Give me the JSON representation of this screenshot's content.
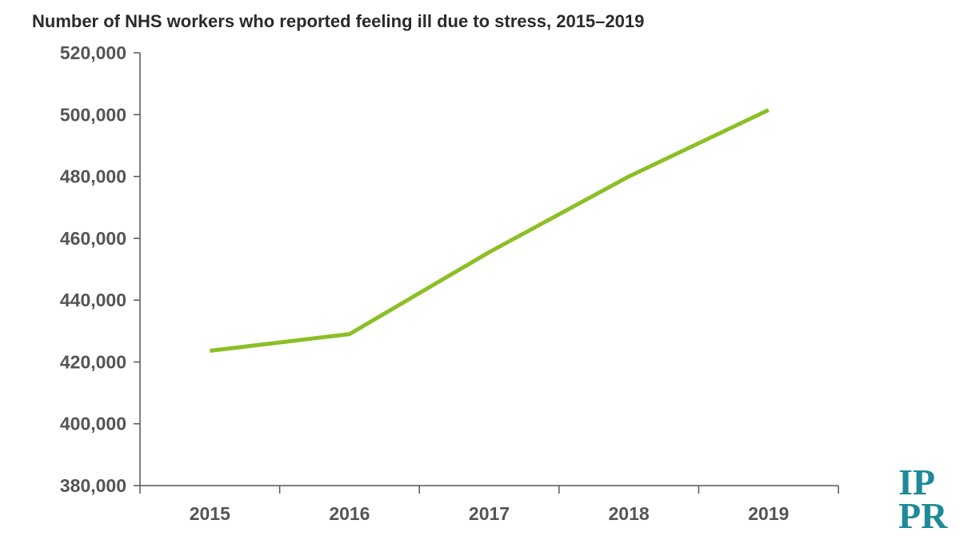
{
  "title": "Number of NHS workers who reported feeling ill due to stress, 2015–2019",
  "colors": {
    "line": "#8cbf26",
    "axis": "#555555",
    "logo": "#1d8a99"
  },
  "logo_text": "IPPR",
  "chart_data": {
    "type": "line",
    "title": "Number of NHS workers who reported feeling ill due to stress, 2015–2019",
    "xlabel": "",
    "ylabel": "",
    "categories": [
      "2015",
      "2016",
      "2017",
      "2018",
      "2019"
    ],
    "values": [
      423600,
      429000,
      455500,
      480000,
      501500
    ],
    "ylim": [
      380000,
      520000
    ],
    "yticks": [
      380000,
      400000,
      420000,
      440000,
      460000,
      480000,
      500000,
      520000
    ],
    "ytick_labels": [
      "380,000",
      "400,000",
      "420,000",
      "440,000",
      "460,000",
      "480,000",
      "500,000",
      "520,000"
    ],
    "grid": false,
    "legend": "none"
  }
}
